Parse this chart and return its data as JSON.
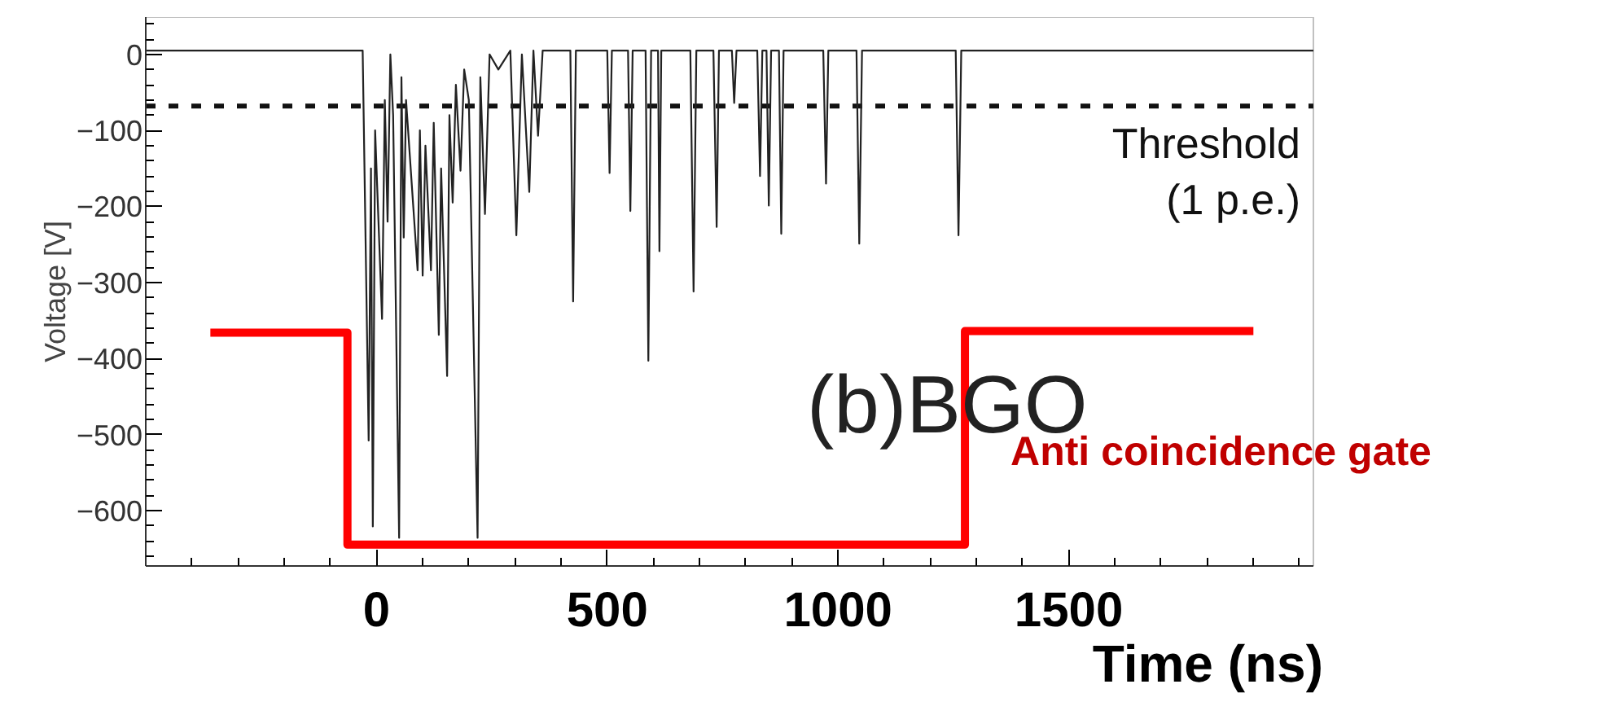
{
  "chart_data": {
    "type": "line",
    "xlabel": "Time (ns)",
    "ylabel": "Voltage [V]",
    "xlim": [
      -500,
      2030
    ],
    "ylim": [
      -673,
      49
    ],
    "xticks": [
      0,
      500,
      1000,
      1500
    ],
    "yticks": [
      0,
      -100,
      -200,
      -300,
      -400,
      -500,
      -600
    ],
    "series": [
      {
        "color": "#222222",
        "x": [
          -500,
          -30,
          -17,
          -12,
          -8,
          -3,
          12,
          18,
          24,
          30,
          36,
          49,
          54,
          59,
          64,
          89,
          94,
          100,
          106,
          118,
          124,
          135,
          140,
          153,
          158,
          165,
          172,
          182,
          190,
          200,
          219,
          225,
          235,
          245,
          264,
          290,
          303,
          315,
          331,
          340,
          350,
          360,
          420,
          426,
          432,
          500,
          505,
          510,
          545,
          550,
          555,
          583,
          589,
          595,
          610,
          613,
          617,
          680,
          687,
          693,
          730,
          737,
          742,
          770,
          775,
          780,
          825,
          831,
          836,
          845,
          850,
          855,
          872,
          877,
          882,
          968,
          974,
          979,
          1040,
          1046,
          1052,
          1255,
          1261,
          1267,
          2030
        ],
        "values": [
          5,
          5,
          -508,
          -150,
          -621,
          -100,
          -348,
          -60,
          -220,
          0,
          -80,
          -636,
          -30,
          -241,
          -60,
          -284,
          -100,
          -291,
          -120,
          -284,
          -90,
          -369,
          -150,
          -423,
          -80,
          -195,
          -40,
          -153,
          -20,
          -60,
          -636,
          -30,
          -210,
          0,
          -20,
          5,
          -238,
          0,
          -181,
          5,
          -107,
          5,
          5,
          -325,
          5,
          5,
          -156,
          5,
          5,
          -206,
          5,
          5,
          -403,
          5,
          5,
          -259,
          5,
          5,
          -312,
          5,
          5,
          -227,
          5,
          5,
          -64,
          5,
          5,
          -160,
          5,
          5,
          -199,
          5,
          5,
          -236,
          5,
          5,
          -170,
          5,
          5,
          -249,
          5,
          5,
          -238,
          5,
          5
        ]
      },
      {
        "name": "Anti coincidence gate",
        "color": "#ff0000",
        "x": [
          -360,
          -63,
          -63,
          1275,
          1275,
          1900
        ],
        "values": [
          -366,
          -366,
          -645,
          -645,
          -364,
          -364
        ]
      }
    ],
    "ref_lines": [
      {
        "axis": "y",
        "value": -68,
        "label": "Threshold\n(1 p.e.)",
        "color": "#111111",
        "line_style": "dashed"
      }
    ],
    "annotations": [
      "(b)BGO"
    ],
    "grid": false,
    "legend": false
  }
}
